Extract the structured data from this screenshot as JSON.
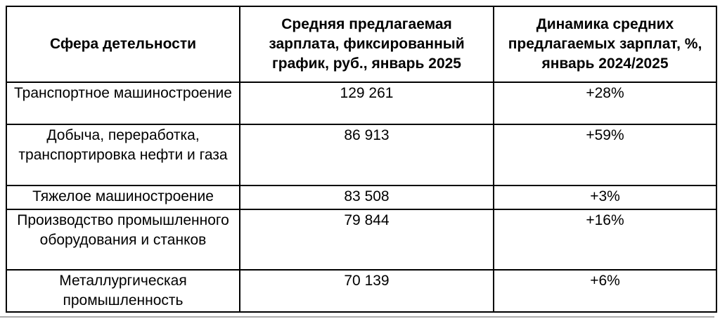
{
  "page": {
    "background": "#ffffff"
  },
  "table": {
    "columns": [
      {
        "key": "sector",
        "label": "Сфера детельности"
      },
      {
        "key": "salary",
        "label": "Средняя предлагаемая зарплата, фиксированный график, руб., январь 2025"
      },
      {
        "key": "dynamics",
        "label": "Динамика средних предлагаемых зарплат, %, январь 2024/2025"
      }
    ],
    "rows": [
      {
        "sector": "Транспортное машиностроение",
        "salary": "129 261",
        "dynamics": "+28%"
      },
      {
        "sector": "Добыча, переработка, транспортировка нефти и газа",
        "salary": "86 913",
        "dynamics": "+59%"
      },
      {
        "sector": "Тяжелое машиностроение",
        "salary": "83 508",
        "dynamics": "+3%"
      },
      {
        "sector": "Производство промышленного оборудования и станков",
        "salary": "79 844",
        "dynamics": "+16%"
      },
      {
        "sector": "Металлургическая промышленность",
        "salary": "70 139",
        "dynamics": "+6%"
      }
    ],
    "colors": {
      "border": "#000000",
      "text": "#000000",
      "background": "#ffffff",
      "page_edge_line": "#ababab"
    }
  },
  "chart_data": {
    "type": "table",
    "title": "",
    "columns": [
      "Сфера детельности",
      "Средняя предлагаемая зарплата, фиксированный график, руб., январь 2025",
      "Динамика средних предлагаемых зарплат, %, январь 2024/2025"
    ],
    "rows": [
      [
        "Транспортное машиностроение",
        129261,
        "+28%"
      ],
      [
        "Добыча, переработка, транспортировка нефти и газа",
        86913,
        "+59%"
      ],
      [
        "Тяжелое машиностроение",
        83508,
        "+3%"
      ],
      [
        "Производство промышленного оборудования и станков",
        79844,
        "+16%"
      ],
      [
        "Металлургическая промышленность",
        70139,
        "+6%"
      ]
    ]
  }
}
